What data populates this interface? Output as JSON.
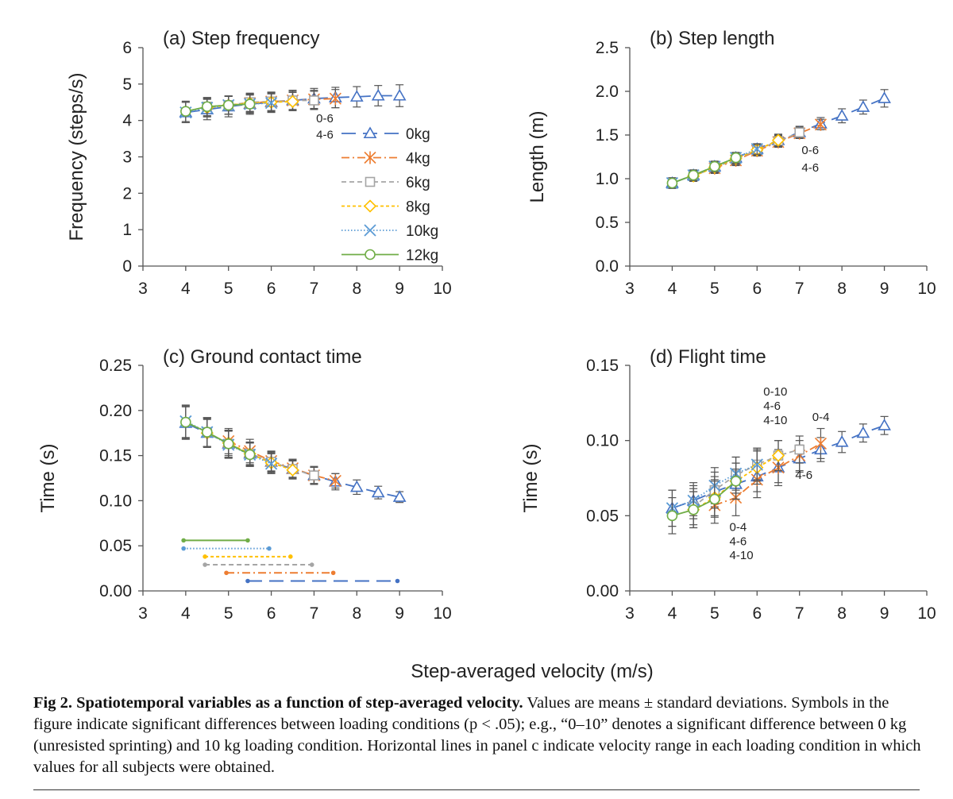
{
  "figure": {
    "shared_xlabel": "Step-averaged velocity (m/s)",
    "caption_label": "Fig 2.",
    "caption_title": "Spatiotemporal variables as a function of step-averaged velocity.",
    "caption_text": "Values are means ± standard deviations. Symbols in the figure indicate significant differences between loading conditions (p < .05); e.g., “0–10” denotes a significant difference between 0 kg (unresisted sprinting) and 10 kg loading condition. Horizontal lines in panel c indicate velocity range in each loading condition in which values for all subjects were obtained."
  },
  "legend": [
    {
      "label": "0kg",
      "color": "#4472c4",
      "marker": "triangle",
      "dash": "18 9"
    },
    {
      "label": "4kg",
      "color": "#ed7d31",
      "marker": "asterisk",
      "dash": "10 4 2 4"
    },
    {
      "label": "6kg",
      "color": "#a5a5a5",
      "marker": "square",
      "dash": "6 4"
    },
    {
      "label": "8kg",
      "color": "#ffc000",
      "marker": "diamond",
      "dash": "4 3"
    },
    {
      "label": "10kg",
      "color": "#5b9bd5",
      "marker": "x",
      "dash": "1.5 2.5"
    },
    {
      "label": "12kg",
      "color": "#70ad47",
      "marker": "circle",
      "dash": "none"
    }
  ],
  "chart_data": [
    {
      "type": "line",
      "title": "(a) Step frequency",
      "xlabel": "",
      "ylabel": "Frequency (steps/s)",
      "xlim": [
        3,
        10
      ],
      "ylim": [
        0,
        6
      ],
      "xticks": [
        "3",
        "4",
        "5",
        "6",
        "7",
        "8",
        "9",
        "10"
      ],
      "yticks": [
        "0",
        "1",
        "2",
        "3",
        "4",
        "5",
        "6"
      ],
      "legend_position": "right",
      "annotations": [
        {
          "text": "0-6",
          "x": 7.05,
          "y": 3.95
        },
        {
          "text": "4-6",
          "x": 7.05,
          "y": 3.5
        }
      ],
      "series": [
        {
          "name": "0kg",
          "x": [
            4,
            4.5,
            5,
            5.5,
            6,
            6.5,
            7,
            7.5,
            8,
            8.5,
            9
          ],
          "y": [
            4.22,
            4.3,
            4.38,
            4.45,
            4.5,
            4.55,
            4.6,
            4.63,
            4.65,
            4.68,
            4.68
          ],
          "err": [
            0.28,
            0.28,
            0.28,
            0.28,
            0.28,
            0.28,
            0.28,
            0.28,
            0.28,
            0.28,
            0.3
          ]
        },
        {
          "name": "4kg",
          "x": [
            5,
            5.5,
            6,
            6.5,
            7,
            7.5
          ],
          "y": [
            4.42,
            4.48,
            4.52,
            4.55,
            4.58,
            4.6
          ],
          "err": [
            0.25,
            0.25,
            0.25,
            0.25,
            0.25,
            0.25
          ]
        },
        {
          "name": "6kg",
          "x": [
            4.5,
            5,
            5.5,
            6,
            6.5,
            7
          ],
          "y": [
            4.38,
            4.42,
            4.5,
            4.52,
            4.55,
            4.55
          ],
          "err": [
            0.25,
            0.25,
            0.25,
            0.25,
            0.25,
            0.25
          ]
        },
        {
          "name": "8kg",
          "x": [
            4.5,
            5,
            5.5,
            6,
            6.5
          ],
          "y": [
            4.35,
            4.42,
            4.48,
            4.5,
            4.52
          ],
          "err": [
            0.25,
            0.25,
            0.25,
            0.25,
            0.25
          ]
        },
        {
          "name": "10kg",
          "x": [
            4,
            4.5,
            5,
            5.5,
            6
          ],
          "y": [
            4.22,
            4.35,
            4.42,
            4.45,
            4.48
          ],
          "err": [
            0.28,
            0.25,
            0.25,
            0.25,
            0.25
          ]
        },
        {
          "name": "12kg",
          "x": [
            4,
            4.5,
            5,
            5.5
          ],
          "y": [
            4.25,
            4.38,
            4.42,
            4.45
          ],
          "err": [
            0.28,
            0.25,
            0.25,
            0.25
          ]
        }
      ]
    },
    {
      "type": "line",
      "title": "(b) Step length",
      "xlabel": "",
      "ylabel": "Length (m)",
      "xlim": [
        3,
        10
      ],
      "ylim": [
        0,
        2.5
      ],
      "xticks": [
        "3",
        "4",
        "5",
        "6",
        "7",
        "8",
        "9",
        "10"
      ],
      "yticks": [
        "0.0",
        "0.5",
        "1.0",
        "1.5",
        "2.0",
        "2.5"
      ],
      "annotations": [
        {
          "text": "0-6",
          "x": 7.05,
          "y": 1.28
        },
        {
          "text": "4-6",
          "x": 7.05,
          "y": 1.08
        }
      ],
      "series": [
        {
          "name": "0kg",
          "x": [
            4,
            4.5,
            5,
            5.5,
            6,
            6.5,
            7,
            7.5,
            8,
            8.5,
            9
          ],
          "y": [
            0.95,
            1.04,
            1.14,
            1.24,
            1.34,
            1.44,
            1.53,
            1.63,
            1.72,
            1.82,
            1.92
          ],
          "err": [
            0.06,
            0.06,
            0.06,
            0.06,
            0.06,
            0.07,
            0.07,
            0.07,
            0.08,
            0.08,
            0.1
          ]
        },
        {
          "name": "4kg",
          "x": [
            5,
            5.5,
            6,
            6.5,
            7,
            7.5
          ],
          "y": [
            1.12,
            1.21,
            1.32,
            1.42,
            1.52,
            1.62
          ],
          "err": [
            0.06,
            0.06,
            0.06,
            0.06,
            0.06,
            0.06
          ]
        },
        {
          "name": "6kg",
          "x": [
            4.5,
            5,
            5.5,
            6,
            6.5,
            7
          ],
          "y": [
            1.03,
            1.13,
            1.22,
            1.33,
            1.43,
            1.53
          ],
          "err": [
            0.06,
            0.06,
            0.06,
            0.06,
            0.06,
            0.06
          ]
        },
        {
          "name": "8kg",
          "x": [
            4.5,
            5,
            5.5,
            6,
            6.5
          ],
          "y": [
            1.03,
            1.13,
            1.23,
            1.33,
            1.44
          ],
          "err": [
            0.06,
            0.06,
            0.06,
            0.06,
            0.06
          ]
        },
        {
          "name": "10kg",
          "x": [
            4,
            4.5,
            5,
            5.5,
            6
          ],
          "y": [
            0.95,
            1.04,
            1.14,
            1.24,
            1.34
          ],
          "err": [
            0.06,
            0.06,
            0.06,
            0.06,
            0.06
          ]
        },
        {
          "name": "12kg",
          "x": [
            4,
            4.5,
            5,
            5.5
          ],
          "y": [
            0.95,
            1.04,
            1.14,
            1.24
          ],
          "err": [
            0.06,
            0.06,
            0.06,
            0.06
          ]
        }
      ]
    },
    {
      "type": "line",
      "title": "(c) Ground contact time",
      "xlabel": "",
      "ylabel": "Time (s)",
      "xlim": [
        3,
        10
      ],
      "ylim": [
        0,
        0.25
      ],
      "xticks": [
        "3",
        "4",
        "5",
        "6",
        "7",
        "8",
        "9",
        "10"
      ],
      "yticks": [
        "0.00",
        "0.05",
        "0.10",
        "0.15",
        "0.20",
        "0.25"
      ],
      "series": [
        {
          "name": "0kg",
          "x": [
            4,
            4.5,
            5,
            5.5,
            6,
            6.5,
            7,
            7.5,
            8,
            8.5,
            9
          ],
          "y": [
            0.186,
            0.175,
            0.163,
            0.152,
            0.143,
            0.135,
            0.128,
            0.121,
            0.115,
            0.109,
            0.104
          ],
          "err": [
            0.018,
            0.016,
            0.015,
            0.013,
            0.011,
            0.01,
            0.01,
            0.009,
            0.008,
            0.007,
            0.006
          ]
        },
        {
          "name": "4kg",
          "x": [
            5,
            5.5,
            6,
            6.5,
            7,
            7.5
          ],
          "y": [
            0.166,
            0.155,
            0.144,
            0.136,
            0.128,
            0.122
          ],
          "err": [
            0.014,
            0.013,
            0.011,
            0.01,
            0.009,
            0.008
          ]
        },
        {
          "name": "6kg",
          "x": [
            4.5,
            5,
            5.5,
            6,
            6.5,
            7
          ],
          "y": [
            0.176,
            0.163,
            0.152,
            0.143,
            0.135,
            0.128
          ],
          "err": [
            0.016,
            0.015,
            0.013,
            0.011,
            0.01,
            0.009
          ]
        },
        {
          "name": "8kg",
          "x": [
            4.5,
            5,
            5.5,
            6,
            6.5
          ],
          "y": [
            0.175,
            0.164,
            0.152,
            0.142,
            0.134
          ],
          "err": [
            0.015,
            0.014,
            0.012,
            0.011,
            0.01
          ]
        },
        {
          "name": "10kg",
          "x": [
            4,
            4.5,
            5,
            5.5,
            6
          ],
          "y": [
            0.188,
            0.176,
            0.162,
            0.151,
            0.141
          ],
          "err": [
            0.018,
            0.016,
            0.015,
            0.013,
            0.011
          ]
        },
        {
          "name": "12kg",
          "x": [
            4,
            4.5,
            5,
            5.5
          ],
          "y": [
            0.187,
            0.176,
            0.163,
            0.151
          ],
          "err": [
            0.018,
            0.016,
            0.015,
            0.013
          ]
        }
      ],
      "ranges": [
        {
          "name": "12kg",
          "x0": 3.95,
          "x1": 5.45,
          "y": 0.056
        },
        {
          "name": "10kg",
          "x0": 3.95,
          "x1": 5.95,
          "y": 0.047
        },
        {
          "name": "8kg",
          "x0": 4.45,
          "x1": 6.45,
          "y": 0.038
        },
        {
          "name": "6kg",
          "x0": 4.45,
          "x1": 6.95,
          "y": 0.029
        },
        {
          "name": "4kg",
          "x0": 4.95,
          "x1": 7.45,
          "y": 0.02
        },
        {
          "name": "0kg",
          "x0": 5.45,
          "x1": 8.95,
          "y": 0.011
        }
      ]
    },
    {
      "type": "line",
      "title": "(d) Flight time",
      "xlabel": "",
      "ylabel": "Time (s)",
      "xlim": [
        3,
        10
      ],
      "ylim": [
        0,
        0.15
      ],
      "xticks": [
        "3",
        "4",
        "5",
        "6",
        "7",
        "8",
        "9",
        "10"
      ],
      "yticks": [
        "0.00",
        "0.05",
        "0.10",
        "0.15"
      ],
      "annotations": [
        {
          "text": "0-10",
          "x": 6.15,
          "y": 0.13
        },
        {
          "text": "4-6",
          "x": 6.15,
          "y": 0.1205
        },
        {
          "text": "4-10",
          "x": 6.15,
          "y": 0.111
        },
        {
          "text": "0-4",
          "x": 7.3,
          "y": 0.113
        },
        {
          "text": "4-6",
          "x": 6.9,
          "y": 0.0745
        },
        {
          "text": "0-4",
          "x": 5.35,
          "y": 0.04
        },
        {
          "text": "4-6",
          "x": 5.35,
          "y": 0.0305
        },
        {
          "text": "4-10",
          "x": 5.35,
          "y": 0.021
        }
      ],
      "series": [
        {
          "name": "0kg",
          "x": [
            4,
            4.5,
            5,
            5.5,
            6,
            6.5,
            7,
            7.5,
            8,
            8.5,
            9
          ],
          "y": [
            0.055,
            0.06,
            0.066,
            0.071,
            0.076,
            0.082,
            0.088,
            0.094,
            0.099,
            0.105,
            0.11
          ],
          "err": [
            0.012,
            0.01,
            0.01,
            0.01,
            0.01,
            0.01,
            0.009,
            0.008,
            0.007,
            0.006,
            0.006
          ]
        },
        {
          "name": "4kg",
          "x": [
            5,
            5.5,
            6,
            6.5,
            7,
            7.5
          ],
          "y": [
            0.057,
            0.062,
            0.074,
            0.082,
            0.09,
            0.098
          ],
          "err": [
            0.012,
            0.012,
            0.012,
            0.012,
            0.01,
            0.01
          ]
        },
        {
          "name": "6kg",
          "x": [
            4.5,
            5,
            5.5,
            6,
            6.5,
            7
          ],
          "y": [
            0.056,
            0.067,
            0.077,
            0.084,
            0.09,
            0.094
          ],
          "err": [
            0.012,
            0.012,
            0.012,
            0.011,
            0.01,
            0.009
          ]
        },
        {
          "name": "8kg",
          "x": [
            4.5,
            5,
            5.5,
            6,
            6.5
          ],
          "y": [
            0.054,
            0.062,
            0.073,
            0.082,
            0.09
          ],
          "err": [
            0.012,
            0.012,
            0.012,
            0.011,
            0.01
          ]
        },
        {
          "name": "10kg",
          "x": [
            4,
            4.5,
            5,
            5.5,
            6
          ],
          "y": [
            0.055,
            0.06,
            0.07,
            0.078,
            0.084
          ],
          "err": [
            0.012,
            0.012,
            0.012,
            0.011,
            0.01
          ]
        },
        {
          "name": "12kg",
          "x": [
            4,
            4.5,
            5,
            5.5
          ],
          "y": [
            0.05,
            0.054,
            0.061,
            0.073
          ],
          "err": [
            0.012,
            0.012,
            0.012,
            0.012
          ]
        }
      ]
    }
  ]
}
